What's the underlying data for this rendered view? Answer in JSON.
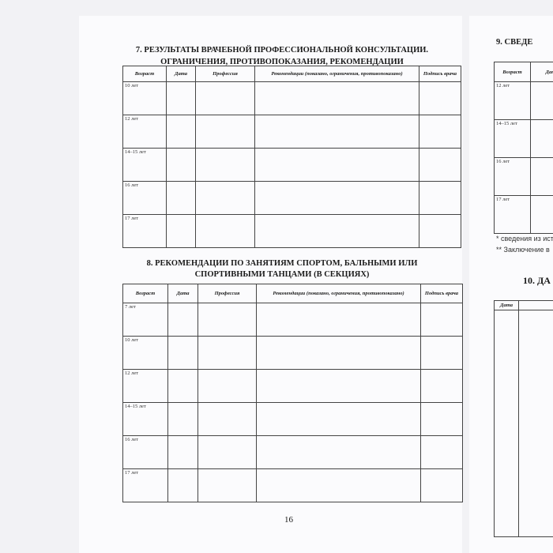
{
  "left_page": {
    "section7": {
      "title_line1": "7. РЕЗУЛЬТАТЫ ВРАЧЕБНОЙ ПРОФЕССИОНАЛЬНОЙ КОНСУЛЬТАЦИИ.",
      "title_line2": "ОГРАНИЧЕНИЯ, ПРОТИВОПОКАЗАНИЯ, РЕКОМЕНДАЦИИ",
      "headers": [
        "Возраст",
        "Дата",
        "Профессия",
        "Рекомендации (показано, ограничения, противопоказано)",
        "Подпись врача"
      ],
      "rows": [
        "10 лет",
        "12 лет",
        "14–15 лет",
        "16 лет",
        "17 лет"
      ]
    },
    "section8": {
      "title_line1": "8. РЕКОМЕНДАЦИИ ПО ЗАНЯТИЯМ СПОРТОМ, БАЛЬНЫМИ ИЛИ",
      "title_line2": "СПОРТИВНЫМИ ТАНЦАМИ (В СЕКЦИЯХ)",
      "headers": [
        "Возраст",
        "Дата",
        "Профессия",
        "Рекомендации (показано, ограничения, противопоказано)",
        "Подпись врача"
      ],
      "rows": [
        "7 лет",
        "10 лет",
        "12 лет",
        "14–15 лет",
        "16 лет",
        "17 лет"
      ]
    },
    "page_number": "16"
  },
  "right_page": {
    "section9": {
      "title": "9. СВЕДЕ",
      "headers": [
        "Возраст",
        "Дата"
      ],
      "rows": [
        "12 лет",
        "14–15 лет",
        "16 лет",
        "17 лет"
      ]
    },
    "footnotes": [
      "* сведения из ист",
      "** Заключение в"
    ],
    "section10": {
      "title": "10. ДА",
      "headers": [
        "Дата"
      ]
    }
  }
}
